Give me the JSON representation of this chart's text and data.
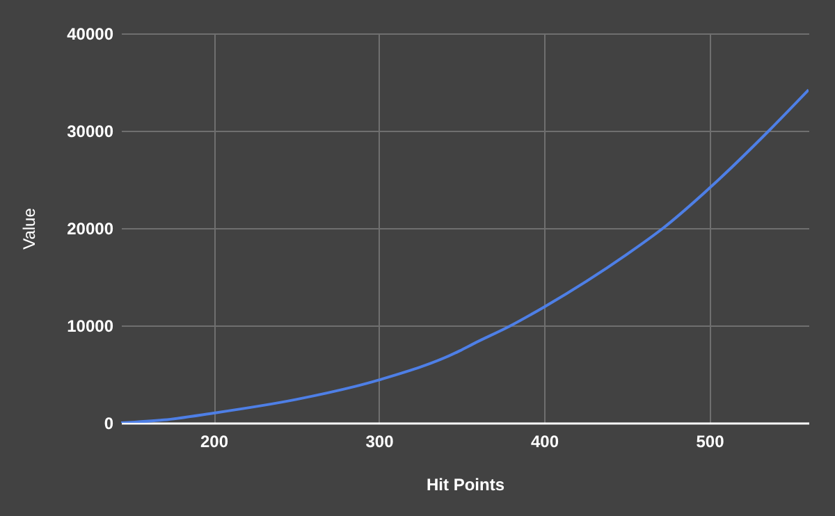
{
  "chart_data": {
    "type": "line",
    "xlabel": "Hit Points",
    "ylabel": "Value",
    "x": [
      144,
      170,
      200,
      250,
      300,
      349,
      357,
      380,
      400,
      450,
      472,
      500,
      536,
      560
    ],
    "series": [
      {
        "color": "#4e7fe6",
        "values": [
          0,
          300,
          1000,
          2400,
          4400,
          7400,
          8100,
          10000,
          11900,
          17300,
          20000,
          24100,
          30000,
          34200
        ]
      }
    ],
    "xlim": [
      144,
      560
    ],
    "xticks": [
      200,
      300,
      400,
      500
    ],
    "ylim": [
      0,
      40000
    ],
    "yticks": [
      0,
      10000,
      20000,
      30000,
      40000
    ],
    "grid": true
  }
}
